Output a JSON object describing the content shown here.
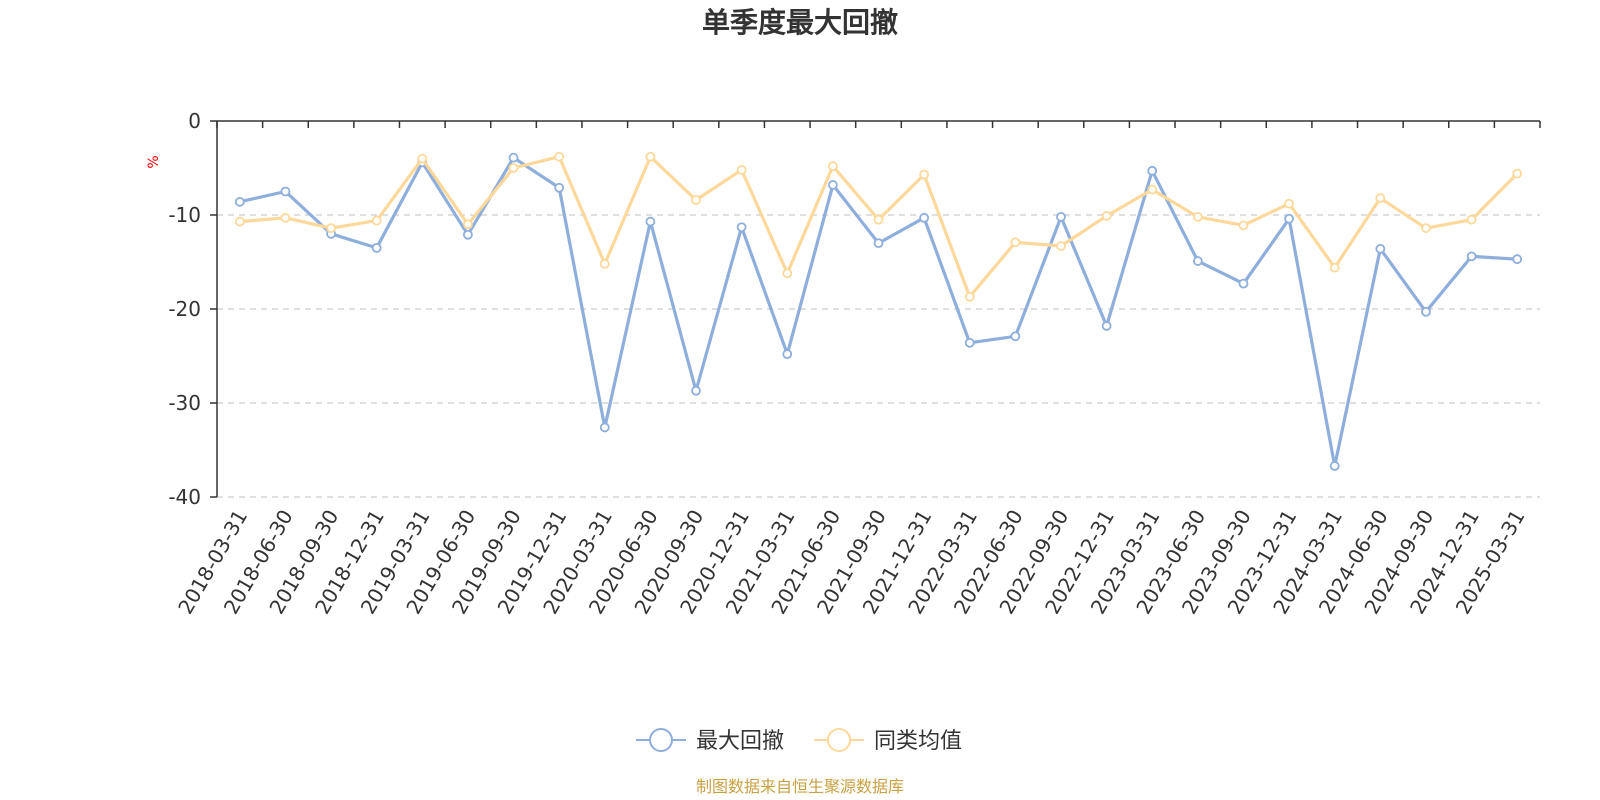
{
  "chart_data": {
    "type": "line",
    "title": "单季度最大回撤",
    "ylabel": "%",
    "ylim": [
      -40,
      0
    ],
    "yticks": [
      0,
      -10,
      -20,
      -30,
      -40
    ],
    "grid": "horizontal dashed",
    "legend_position": "bottom-center",
    "categories": [
      "2018-03-31",
      "2018-06-30",
      "2018-09-30",
      "2018-12-31",
      "2019-03-31",
      "2019-06-30",
      "2019-09-30",
      "2019-12-31",
      "2020-03-31",
      "2020-06-30",
      "2020-09-30",
      "2020-12-31",
      "2021-03-31",
      "2021-06-30",
      "2021-09-30",
      "2021-12-31",
      "2022-03-31",
      "2022-06-30",
      "2022-09-30",
      "2022-12-31",
      "2023-03-31",
      "2023-06-30",
      "2023-09-30",
      "2023-12-31",
      "2024-03-31",
      "2024-06-30",
      "2024-09-30",
      "2024-12-31",
      "2025-03-31"
    ],
    "series": [
      {
        "name": "最大回撤",
        "color": "#8eaedb",
        "values": [
          -8.6,
          -7.5,
          -12.0,
          -13.5,
          -4.4,
          -12.1,
          -3.9,
          -7.1,
          -32.6,
          -10.7,
          -28.7,
          -11.3,
          -24.8,
          -6.8,
          -13.0,
          -10.3,
          -23.6,
          -22.9,
          -10.2,
          -21.8,
          -5.3,
          -14.9,
          -17.3,
          -10.4,
          -36.7,
          -13.6,
          -20.3,
          -14.4,
          -14.7
        ]
      },
      {
        "name": "同类均值",
        "color": "#fcd89b",
        "values": [
          -10.7,
          -10.3,
          -11.4,
          -10.6,
          -4.0,
          -11.0,
          -5.0,
          -3.8,
          -15.2,
          -3.8,
          -8.4,
          -5.2,
          -16.2,
          -4.8,
          -10.5,
          -5.7,
          -18.7,
          -12.9,
          -13.3,
          -10.1,
          -7.3,
          -10.2,
          -11.1,
          -8.8,
          -15.6,
          -8.2,
          -11.4,
          -10.5,
          -5.6
        ]
      }
    ]
  },
  "footer": {
    "source": "制图数据来自恒生聚源数据库"
  },
  "colors": {
    "axis": "#333333",
    "grid": "#cccccc",
    "source": "#c8a142",
    "unit": "#ff0000"
  }
}
